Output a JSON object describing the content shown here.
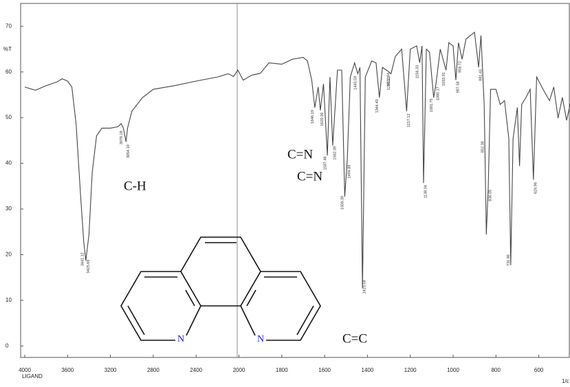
{
  "chart_data": {
    "type": "line",
    "y_label": "%T",
    "x_label": "1/c",
    "corner_label": "LIGAND",
    "xlim": [
      4000,
      450
    ],
    "ylim": [
      -2.5,
      75
    ],
    "xticks": [
      4000,
      3600,
      3200,
      2800,
      2400,
      2000,
      1800,
      1600,
      1400,
      1200,
      1000,
      800,
      600
    ],
    "yticks": [
      0,
      10,
      20,
      30,
      40,
      50,
      60,
      70
    ],
    "color": "#444444",
    "x": [
      4000,
      3900,
      3800,
      3700,
      3650,
      3600,
      3560,
      3520,
      3480,
      3450,
      3430,
      3400,
      3370,
      3330,
      3280,
      3200,
      3130,
      3100,
      3079,
      3065,
      3054,
      3040,
      3000,
      2900,
      2800,
      2600,
      2400,
      2200,
      2100,
      2050,
      2010,
      1980,
      1940,
      1900,
      1860,
      1800,
      1750,
      1700,
      1680,
      1660,
      1646,
      1630,
      1620,
      1605,
      1587,
      1575,
      1562,
      1540,
      1520,
      1506,
      1494,
      1480,
      1460,
      1445,
      1435,
      1423,
      1410,
      1380,
      1360,
      1344,
      1330,
      1311,
      1290,
      1270,
      1240,
      1217,
      1200,
      1170,
      1156,
      1145,
      1138,
      1125,
      1110,
      1091,
      1080,
      1060,
      1033,
      1020,
      1000,
      987,
      975,
      958,
      940,
      900,
      881,
      870,
      855,
      845,
      836,
      825,
      800,
      780,
      760,
      740,
      731,
      720,
      700,
      690,
      680,
      660,
      640,
      625,
      610,
      580,
      550,
      530,
      510,
      490,
      470,
      450
    ],
    "values": [
      56.7,
      56,
      57,
      57.8,
      58.5,
      58,
      56.7,
      48.4,
      33.4,
      23,
      18.7,
      24.4,
      38,
      46,
      47.7,
      47.7,
      48,
      48.7,
      47.7,
      46,
      44.7,
      47.7,
      51.4,
      54.4,
      56.2,
      57,
      58,
      58.9,
      59.6,
      59,
      60.4,
      58.2,
      59.3,
      59.7,
      62,
      61.7,
      62.8,
      63.2,
      62.4,
      58.2,
      52.2,
      56.7,
      51.6,
      57.4,
      41.7,
      58.9,
      43.9,
      60.4,
      60.4,
      32.7,
      40.9,
      58.9,
      62,
      59.6,
      61,
      12.7,
      58.9,
      62.4,
      62,
      54.4,
      61,
      60.4,
      59.6,
      63.4,
      65,
      51.4,
      65,
      65.7,
      62,
      65.7,
      35.7,
      65,
      64.3,
      54.4,
      57.4,
      65,
      60.4,
      66.4,
      65.7,
      58.2,
      66.4,
      62.8,
      67.2,
      68.7,
      61,
      68,
      52.9,
      24.4,
      34.9,
      56.2,
      56.2,
      52.9,
      53.7,
      45.4,
      17.7,
      45.4,
      52.2,
      39.4,
      52.9,
      54.4,
      56.2,
      36.4,
      58.9,
      56.2,
      53.7,
      56.7,
      49.9,
      54.4,
      49.4,
      53.7
    ],
    "peak_labels": [
      {
        "value": 3441.12,
        "label": "3441.12"
      },
      {
        "value": 3425.69,
        "label": "3425.69"
      },
      {
        "value": 3079.18,
        "label": "3079.18"
      },
      {
        "value": 3054.1,
        "label": "3054.10"
      },
      {
        "value": 1646.19,
        "label": "1646.19"
      },
      {
        "value": 1620.26,
        "label": "1620.26"
      },
      {
        "value": 1587.48,
        "label": "1587.48"
      },
      {
        "value": 1562.39,
        "label": "1562.39"
      },
      {
        "value": 1506.39,
        "label": "1506.39"
      },
      {
        "value": 1494.89,
        "label": "1494.89"
      },
      {
        "value": 1445.59,
        "label": "1445.59"
      },
      {
        "value": 1423.58,
        "label": "1423.58"
      },
      {
        "value": 1344.43,
        "label": "1344.43"
      },
      {
        "value": 1311.84,
        "label": "1311.84"
      },
      {
        "value": 1290.21,
        "label": "1290.21"
      },
      {
        "value": 1217.12,
        "label": "1217.12"
      },
      {
        "value": 1156.33,
        "label": "1156.33"
      },
      {
        "value": 1138.04,
        "label": "1138.04"
      },
      {
        "value": 1091.75,
        "label": "1091.75"
      },
      {
        "value": 1080.17,
        "label": "1080.17"
      },
      {
        "value": 1033.91,
        "label": "1033.91"
      },
      {
        "value": 987.58,
        "label": "987.58"
      },
      {
        "value": 958.72,
        "label": "958.72"
      },
      {
        "value": 881.43,
        "label": "881.43"
      },
      {
        "value": 852.39,
        "label": "852.39"
      },
      {
        "value": 836.05,
        "label": "836.05"
      },
      {
        "value": 731.96,
        "label": "731.96"
      },
      {
        "value": 624.96,
        "label": "624.96"
      }
    ],
    "annotations": [
      "C-H",
      "C=N",
      "C=N",
      "C=C"
    ],
    "molecule_atoms": [
      "N",
      "N"
    ]
  }
}
